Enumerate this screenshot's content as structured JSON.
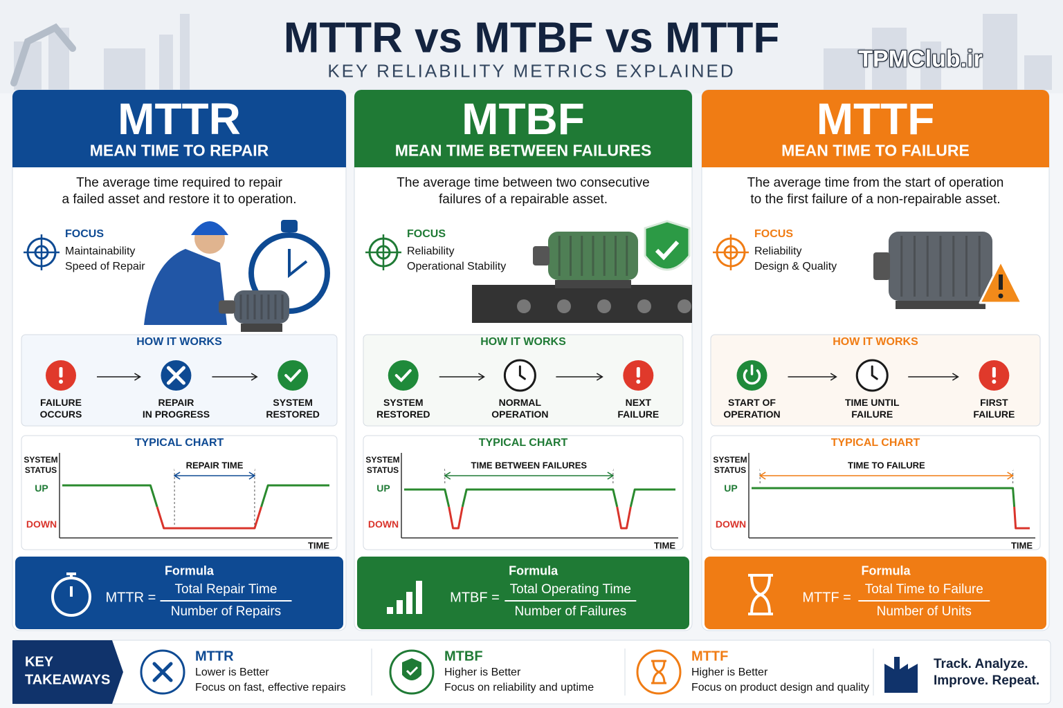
{
  "header": {
    "title": "MTTR vs MTBF vs MTTF",
    "subtitle": "KEY RELIABILITY METRICS EXPLAINED",
    "watermark": "TPMClub.ir"
  },
  "panels": [
    {
      "abbr": "MTTR",
      "name": "MEAN TIME TO REPAIR",
      "description": [
        "The average time required to repair",
        "a failed asset and restore it to operation."
      ],
      "focus": {
        "label": "FOCUS",
        "items": [
          "Maintainability",
          "Speed of Repair"
        ]
      },
      "how_it_works": {
        "label": "HOW IT WORKS",
        "steps": [
          [
            "FAILURE",
            "OCCURS"
          ],
          [
            "REPAIR",
            "IN PROGRESS"
          ],
          [
            "SYSTEM",
            "RESTORED"
          ]
        ]
      },
      "typical_chart": {
        "label": "TYPICAL CHART",
        "y_axis_label": [
          "SYSTEM",
          "STATUS"
        ],
        "up": "UP",
        "down": "DOWN",
        "x_axis_label": "TIME",
        "span_label": "REPAIR TIME"
      },
      "formula": {
        "label": "Formula",
        "lhs": "MTTR =",
        "numerator": "Total Repair Time",
        "denominator": "Number of Repairs"
      }
    },
    {
      "abbr": "MTBF",
      "name": "MEAN TIME BETWEEN FAILURES",
      "description": [
        "The average time between two consecutive",
        "failures of a repairable asset."
      ],
      "focus": {
        "label": "FOCUS",
        "items": [
          "Reliability",
          "Operational Stability"
        ]
      },
      "how_it_works": {
        "label": "HOW IT WORKS",
        "steps": [
          [
            "SYSTEM",
            "RESTORED"
          ],
          [
            "NORMAL",
            "OPERATION"
          ],
          [
            "NEXT",
            "FAILURE"
          ]
        ]
      },
      "typical_chart": {
        "label": "TYPICAL CHART",
        "y_axis_label": [
          "SYSTEM",
          "STATUS"
        ],
        "up": "UP",
        "down": "DOWN",
        "x_axis_label": "TIME",
        "span_label": "TIME BETWEEN FAILURES"
      },
      "formula": {
        "label": "Formula",
        "lhs": "MTBF =",
        "numerator": "Total Operating Time",
        "denominator": "Number of Failures"
      }
    },
    {
      "abbr": "MTTF",
      "name": "MEAN TIME TO FAILURE",
      "description": [
        "The average time from the start of operation",
        "to the first failure of a non-repairable asset."
      ],
      "focus": {
        "label": "FOCUS",
        "items": [
          "Reliability",
          "Design & Quality"
        ]
      },
      "how_it_works": {
        "label": "HOW IT WORKS",
        "steps": [
          [
            "START OF",
            "OPERATION"
          ],
          [
            "TIME UNTIL",
            "FAILURE"
          ],
          [
            "FIRST",
            "FAILURE"
          ]
        ]
      },
      "typical_chart": {
        "label": "TYPICAL CHART",
        "y_axis_label": [
          "SYSTEM",
          "STATUS"
        ],
        "up": "UP",
        "down": "DOWN",
        "x_axis_label": "TIME",
        "span_label": "TIME TO FAILURE"
      },
      "formula": {
        "label": "Formula",
        "lhs": "MTTF =",
        "numerator": "Total Time to Failure",
        "denominator": "Number of Units"
      }
    }
  ],
  "takeaways": {
    "heading": [
      "KEY",
      "TAKEAWAYS"
    ],
    "items": [
      {
        "title": "MTTR",
        "lines": [
          "Lower is Better",
          "Focus on fast, effective repairs"
        ]
      },
      {
        "title": "MTBF",
        "lines": [
          "Higher is Better",
          "Focus on reliability and uptime"
        ]
      },
      {
        "title": "MTTF",
        "lines": [
          "Higher is Better",
          "Focus on product design and quality"
        ]
      }
    ],
    "closing": [
      "Track. Analyze.",
      "Improve. Repeat."
    ]
  }
}
